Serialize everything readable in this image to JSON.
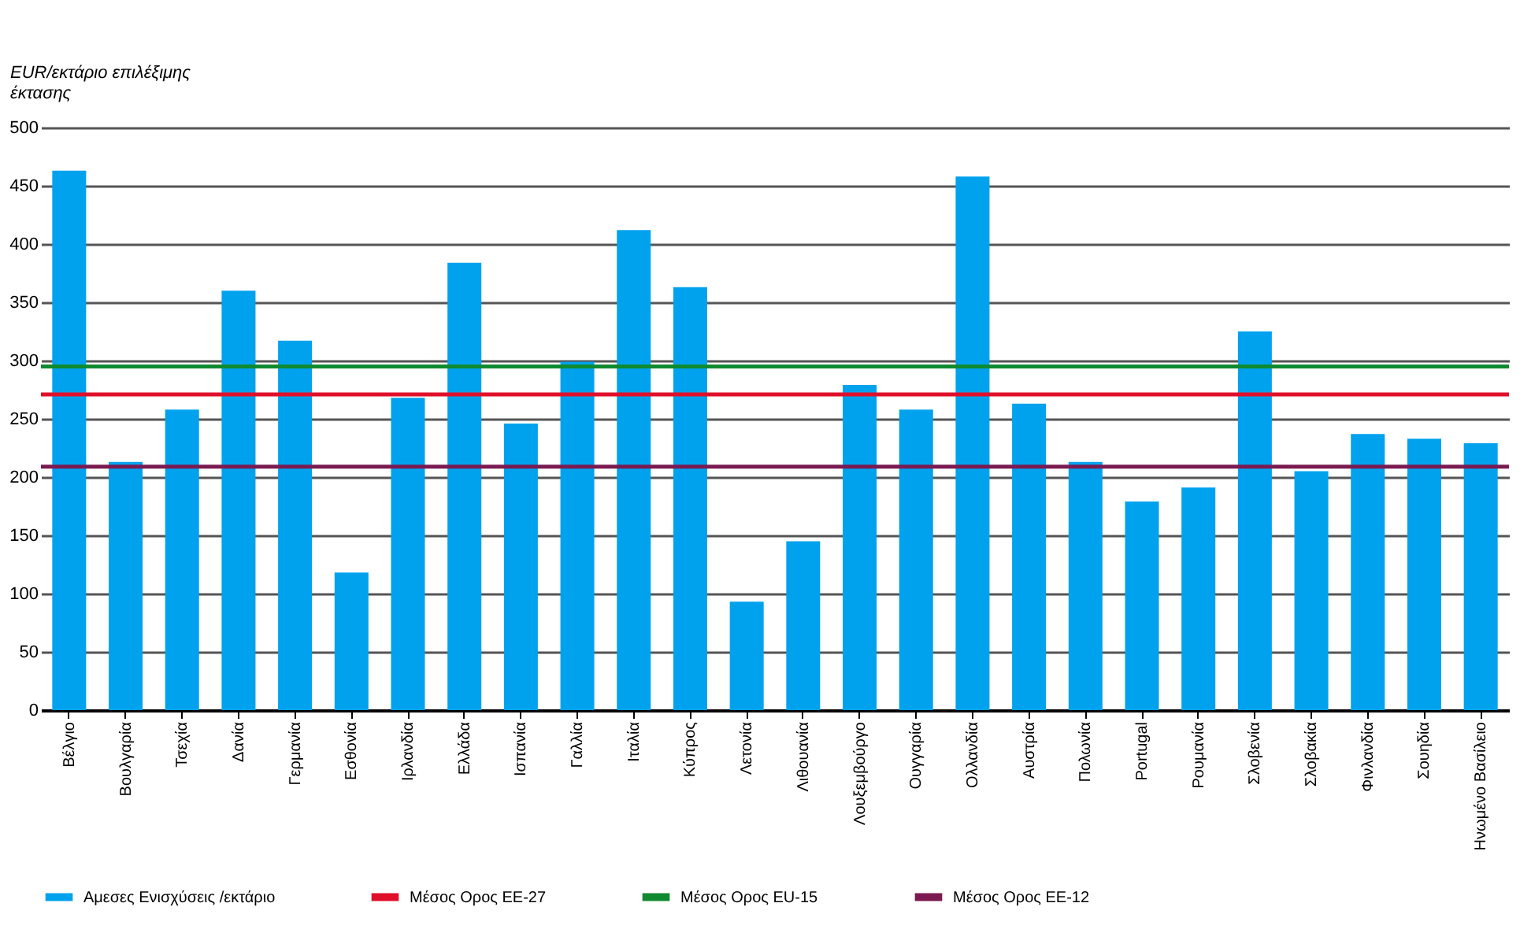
{
  "chart_data": {
    "type": "bar",
    "ylabel": "EUR/εκτάριο επιλέξιμης έκτασης",
    "categories": [
      "Βέλγιο",
      "Βουλγαρία",
      "Τσεχία",
      "Δανία",
      "Γερμανία",
      "Εσθονία",
      "Ιρλανδία",
      "Ελλάδα",
      "Ισπανία",
      "Γαλλία",
      "Ιταλία",
      "Κύπρος",
      "Λετονία",
      "Λιθουανία",
      "Λουξεμβούργο",
      "Ουγγαρία",
      "Ολλανδία",
      "Αυστρία",
      "Πολωνία",
      "Portugal",
      "Ρουμανία",
      "Σλοβενία",
      "Σλοβακία",
      "Φινλανδία",
      "Σουηδία",
      "Ηνωμένο Βασίλειο"
    ],
    "series": [
      {
        "name": "Αμεσες Ενισχύσεις /εκτάριο",
        "color": "#00a2ee",
        "values": [
          463,
          213,
          258,
          360,
          317,
          118,
          268,
          384,
          246,
          299,
          412,
          363,
          93,
          145,
          279,
          258,
          458,
          263,
          213,
          179,
          191,
          325,
          205,
          237,
          233,
          229
        ]
      }
    ],
    "ref_lines": [
      {
        "axis": "y",
        "value": 271,
        "label": "Μέσος Ορος ΕΕ-27",
        "color": "#e0102a"
      },
      {
        "axis": "y",
        "value": 295,
        "label": "Μέσος Ορος EU-15",
        "color": "#108a30"
      },
      {
        "axis": "y",
        "value": 209,
        "label": "Μέσος Ορος ΕΕ-12",
        "color": "#7a1a50"
      }
    ],
    "ylim": [
      0,
      500
    ],
    "yticks": [
      0,
      50,
      100,
      150,
      200,
      250,
      300,
      350,
      400,
      450,
      500
    ],
    "grid": "y",
    "legend": "bottom"
  }
}
